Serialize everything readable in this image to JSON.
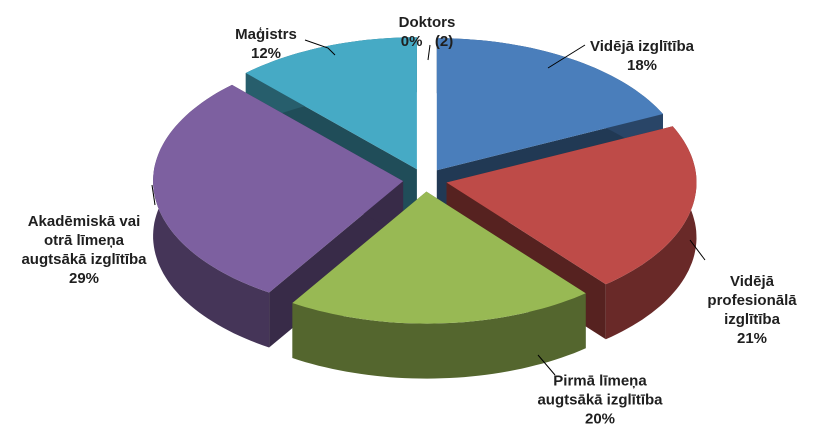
{
  "chart_data": {
    "type": "pie3d",
    "categories": [
      "Vidējā izglītība",
      "Vidējā profesionālā izglītība",
      "Pirmā līmeņa augtsākā izglītība",
      "Akadēmiskā vai otrā līmeņa augtsākā izglītība",
      "Maģistrs",
      "Doktors"
    ],
    "values": [
      18,
      21,
      20,
      29,
      12,
      0
    ],
    "value_labels": [
      "18%",
      "21%",
      "20%",
      "29%",
      "12%",
      "0%   (2)"
    ],
    "colors": [
      "#4a7ebb",
      "#be4b48",
      "#98b954",
      "#7d60a0",
      "#46aac5",
      "#f79646"
    ]
  }
}
